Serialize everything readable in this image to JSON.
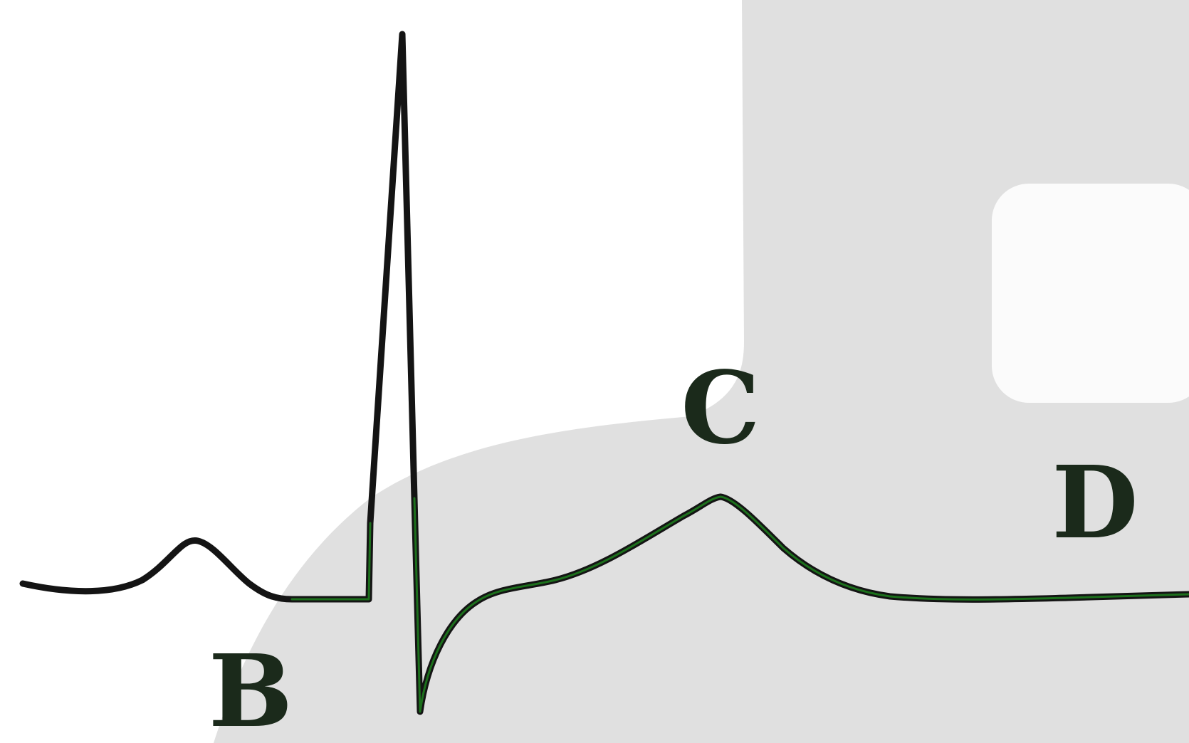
{
  "labels": {
    "b": "B",
    "c": "C",
    "d": "D"
  },
  "colors": {
    "background": "#ffffff",
    "shaded_region": "#e0e0e0",
    "inner_box": "#fbfbfb",
    "trace": "#141414",
    "trace_highlight": "#1f8f1f",
    "label_text": "#1b2a1b"
  }
}
